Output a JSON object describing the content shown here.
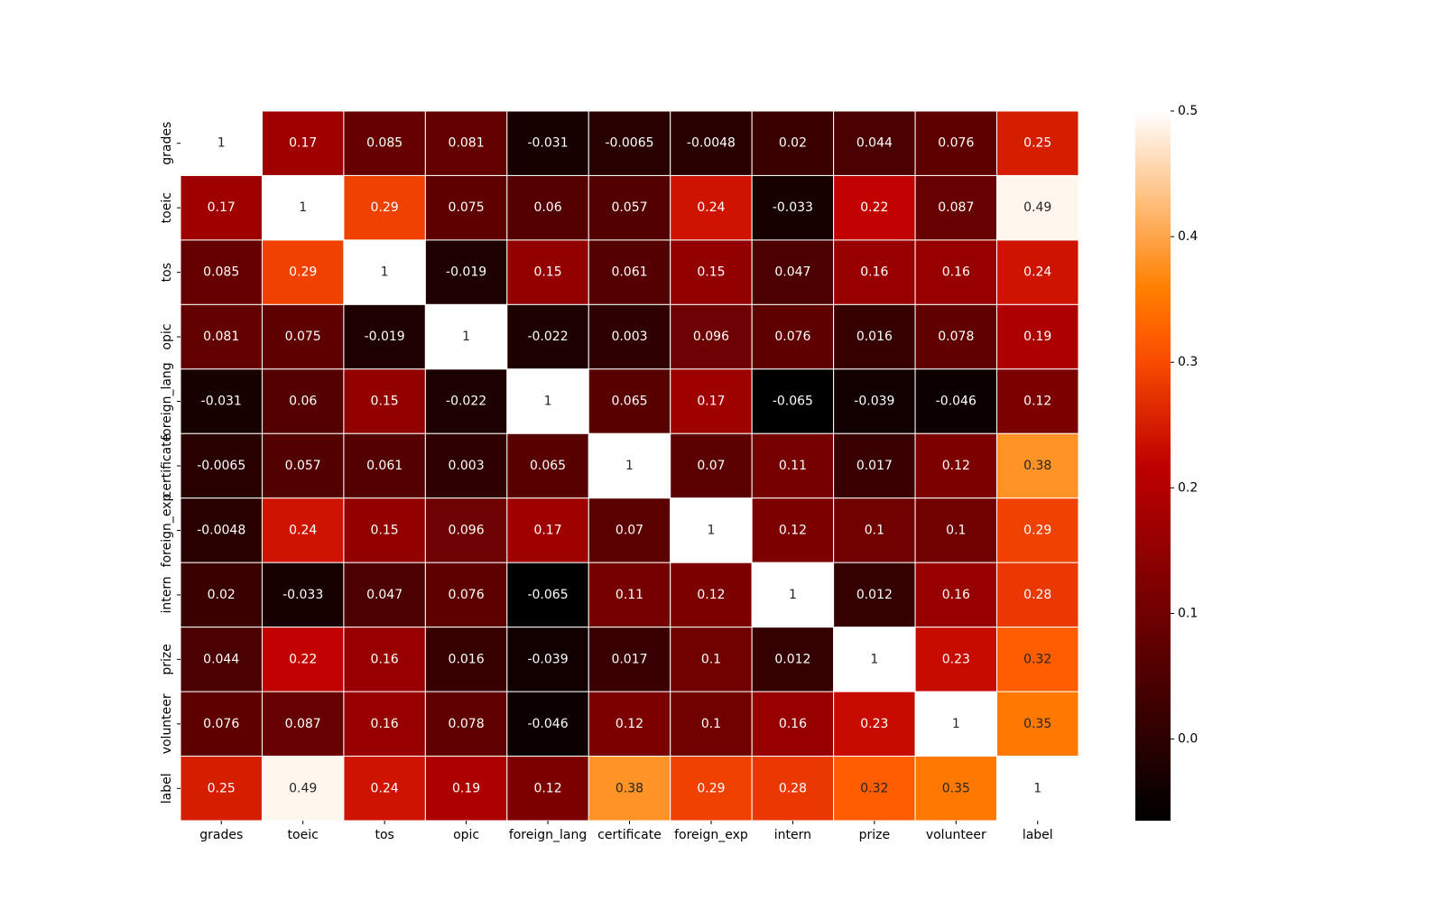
{
  "chart_data": {
    "type": "heatmap",
    "title": "",
    "xlabel": "",
    "ylabel": "",
    "colormap": "gist_heat",
    "color_range": [
      -0.065,
      0.5
    ],
    "colorbar_ticks": [
      "0.0",
      "0.1",
      "0.2",
      "0.3",
      "0.4",
      "0.5"
    ],
    "colorbar_tick_values": [
      0.0,
      0.1,
      0.2,
      0.3,
      0.4,
      0.5
    ],
    "x_categories": [
      "grades",
      "toeic",
      "tos",
      "opic",
      "foreign_lang",
      "certificate",
      "foreign_exp",
      "intern",
      "prize",
      "volunteer",
      "label"
    ],
    "y_categories": [
      "grades",
      "toeic",
      "tos",
      "opic",
      "foreign_lang",
      "certificate",
      "foreign_exp",
      "intern",
      "prize",
      "volunteer",
      "label"
    ],
    "labels": [
      [
        "1",
        "0.17",
        "0.085",
        "0.081",
        "-0.031",
        "-0.0065",
        "-0.0048",
        "0.02",
        "0.044",
        "0.076",
        "0.25"
      ],
      [
        "0.17",
        "1",
        "0.29",
        "0.075",
        "0.06",
        "0.057",
        "0.24",
        "-0.033",
        "0.22",
        "0.087",
        "0.49"
      ],
      [
        "0.085",
        "0.29",
        "1",
        "-0.019",
        "0.15",
        "0.061",
        "0.15",
        "0.047",
        "0.16",
        "0.16",
        "0.24"
      ],
      [
        "0.081",
        "0.075",
        "-0.019",
        "1",
        "-0.022",
        "0.003",
        "0.096",
        "0.076",
        "0.016",
        "0.078",
        "0.19"
      ],
      [
        "-0.031",
        "0.06",
        "0.15",
        "-0.022",
        "1",
        "0.065",
        "0.17",
        "-0.065",
        "-0.039",
        "-0.046",
        "0.12"
      ],
      [
        "-0.0065",
        "0.057",
        "0.061",
        "0.003",
        "0.065",
        "1",
        "0.07",
        "0.11",
        "0.017",
        "0.12",
        "0.38"
      ],
      [
        "-0.0048",
        "0.24",
        "0.15",
        "0.096",
        "0.17",
        "0.07",
        "1",
        "0.12",
        "0.1",
        "0.1",
        "0.29"
      ],
      [
        "0.02",
        "-0.033",
        "0.047",
        "0.076",
        "-0.065",
        "0.11",
        "0.12",
        "1",
        "0.012",
        "0.16",
        "0.28"
      ],
      [
        "0.044",
        "0.22",
        "0.16",
        "0.016",
        "-0.039",
        "0.017",
        "0.1",
        "0.012",
        "1",
        "0.23",
        "0.32"
      ],
      [
        "0.076",
        "0.087",
        "0.16",
        "0.078",
        "-0.046",
        "0.12",
        "0.1",
        "0.16",
        "0.23",
        "1",
        "0.35"
      ],
      [
        "0.25",
        "0.49",
        "0.24",
        "0.19",
        "0.12",
        "0.38",
        "0.29",
        "0.28",
        "0.32",
        "0.35",
        "1"
      ]
    ]
  }
}
